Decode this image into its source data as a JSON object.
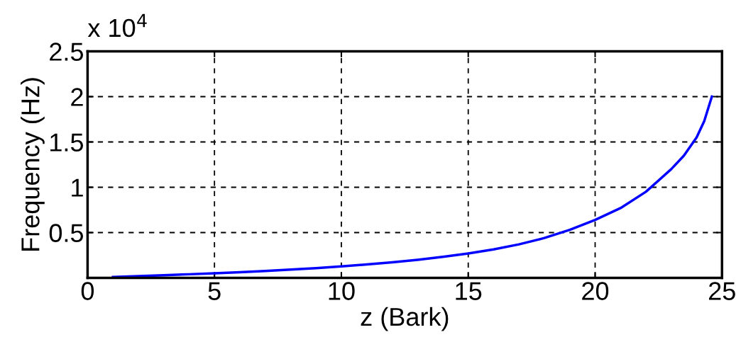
{
  "chart_data": {
    "type": "line",
    "xlabel": "z (Bark)",
    "ylabel": "Frequency (Hz)",
    "annotations": [
      "x 10$^{4}$"
    ],
    "x": [
      1,
      2,
      3,
      4,
      5,
      6,
      7,
      8,
      9,
      10,
      11,
      12,
      13,
      14,
      15,
      16,
      17,
      18,
      19,
      20,
      21,
      22,
      23,
      23.5,
      24,
      24.3,
      24.6
    ],
    "series": [
      {
        "color": "#0000ff",
        "values": [
          0.01,
          0.02,
          0.03,
          0.04,
          0.051,
          0.063,
          0.077,
          0.092,
          0.108,
          0.127,
          0.148,
          0.172,
          0.2,
          0.232,
          0.27,
          0.315,
          0.37,
          0.44,
          0.53,
          0.64,
          0.77,
          0.95,
          1.2,
          1.35,
          1.55,
          1.73,
          2.0
        ]
      }
    ],
    "xlim": [
      0,
      25
    ],
    "ylim": [
      0,
      2.5
    ],
    "xticks": [
      0,
      5,
      10,
      15,
      20,
      25
    ],
    "yticks": [
      0.5,
      1,
      1.5,
      2,
      2.5
    ],
    "grid": true,
    "line_style": "solid"
  }
}
